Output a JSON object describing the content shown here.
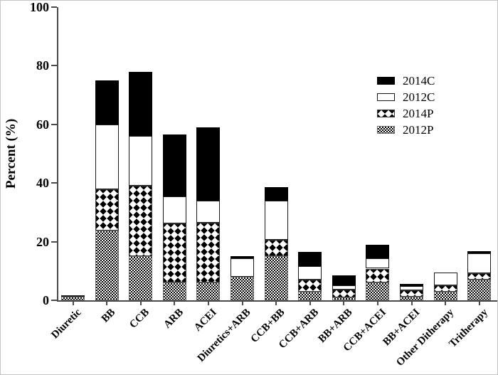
{
  "figure_border_color": "#c6c6c6",
  "accent_color": "#000000",
  "chart_data": {
    "type": "bar",
    "subtype": "stacked",
    "title": "",
    "xlabel": "",
    "ylabel": "Percent (%)",
    "ylim": [
      0,
      100
    ],
    "yticks": [
      0,
      20,
      40,
      60,
      80,
      100
    ],
    "grid": false,
    "legend_position": "upper-right",
    "categories": [
      "Diuretic",
      "BB",
      "CCB",
      "ARB",
      "ACEI",
      "Diuretics+ARB",
      "CCB+BB",
      "CCB+ARB",
      "BB+ARB",
      "CCB+ACEI",
      "BB+ACEI",
      "Other Ditherapy",
      "Tritherapy"
    ],
    "stack_order_bottom_to_top": [
      "2012P",
      "2014P",
      "2012C",
      "2014C"
    ],
    "series": [
      {
        "name": "2012P",
        "fill": "dense-check",
        "values": [
          1.2,
          23.8,
          15.0,
          6.0,
          6.0,
          8.0,
          15.0,
          3.0,
          1.0,
          6.0,
          1.2,
          3.0,
          7.0
        ]
      },
      {
        "name": "2014P",
        "fill": "diamond-check",
        "values": [
          0,
          14.0,
          24.0,
          20.3,
          20.5,
          0,
          5.7,
          4.1,
          2.6,
          4.8,
          2.3,
          2.0,
          2.2
        ]
      },
      {
        "name": "2012C",
        "fill": "open-white",
        "values": [
          0.6,
          22.2,
          17.0,
          9.2,
          7.5,
          6.2,
          13.2,
          4.5,
          1.5,
          3.5,
          1.4,
          4.5,
          6.8
        ]
      },
      {
        "name": "2014C",
        "fill": "solid-black",
        "values": [
          0,
          15.0,
          22.0,
          21.0,
          25.0,
          0.8,
          4.6,
          4.9,
          3.4,
          4.7,
          0.6,
          0,
          0.8
        ]
      }
    ],
    "legend": [
      {
        "label": "2014C",
        "fill": "solid-black"
      },
      {
        "label": "2012C",
        "fill": "open-white"
      },
      {
        "label": "2014P",
        "fill": "diamond-check"
      },
      {
        "label": "2012P",
        "fill": "dense-check"
      }
    ]
  }
}
